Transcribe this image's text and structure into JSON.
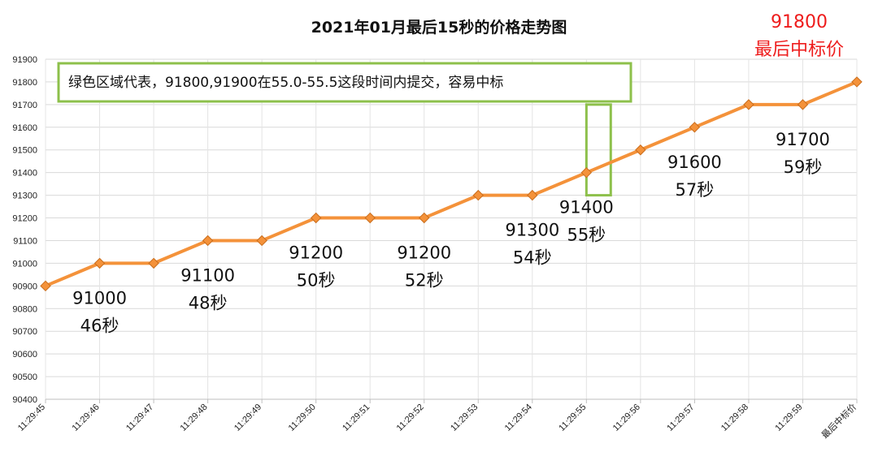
{
  "chart_data": {
    "type": "line",
    "title": "2021年01月最后15秒的价格走势图",
    "categories": [
      "11:29:45",
      "11:29:46",
      "11:29:47",
      "11:29:48",
      "11:29:49",
      "11:29:50",
      "11:29:51",
      "11:29:52",
      "11:29:53",
      "11:29:54",
      "11:29:55",
      "11:29:56",
      "11:29:57",
      "11:29:58",
      "11:29:59",
      "最后中标价"
    ],
    "series": [
      {
        "values": [
          90900,
          91000,
          91000,
          91100,
          91100,
          91200,
          91200,
          91200,
          91300,
          91300,
          91400,
          91500,
          91600,
          91700,
          91700,
          91800
        ]
      }
    ],
    "ylim": [
      90400,
      91900
    ],
    "yticks": [
      90400,
      90500,
      90600,
      90700,
      90800,
      90900,
      91000,
      91100,
      91200,
      91300,
      91400,
      91500,
      91600,
      91700,
      91800,
      91900
    ],
    "grid": true,
    "line_color": "#f4923a",
    "marker_color": "#f4923a",
    "annotations": [
      {
        "category": "11:29:46",
        "lines": [
          "91000",
          "46秒"
        ]
      },
      {
        "category": "11:29:48",
        "lines": [
          "91100",
          "48秒"
        ]
      },
      {
        "category": "11:29:50",
        "lines": [
          "91200",
          "50秒"
        ]
      },
      {
        "category": "11:29:52",
        "lines": [
          "91200",
          "52秒"
        ]
      },
      {
        "category": "11:29:54",
        "lines": [
          "91300",
          "54秒"
        ]
      },
      {
        "category": "11:29:55",
        "lines": [
          "91400",
          "55秒"
        ]
      },
      {
        "category": "11:29:57",
        "lines": [
          "91600",
          "57秒"
        ]
      },
      {
        "category": "11:29:59",
        "lines": [
          "91700",
          "59秒"
        ]
      }
    ],
    "final_annotation": {
      "lines": [
        "91800",
        "最后中标价"
      ],
      "color": "#ee1c1c"
    },
    "note": {
      "text": "绿色区域代表，91800,91900在55.0-55.5这段时间内提交，容易中标",
      "border_color": "#8dc04b"
    },
    "highlight": {
      "x_range": [
        "11:29:55",
        "11:29:55.5"
      ],
      "y_range": [
        91300,
        91700
      ],
      "color": "#8dc04b"
    }
  }
}
